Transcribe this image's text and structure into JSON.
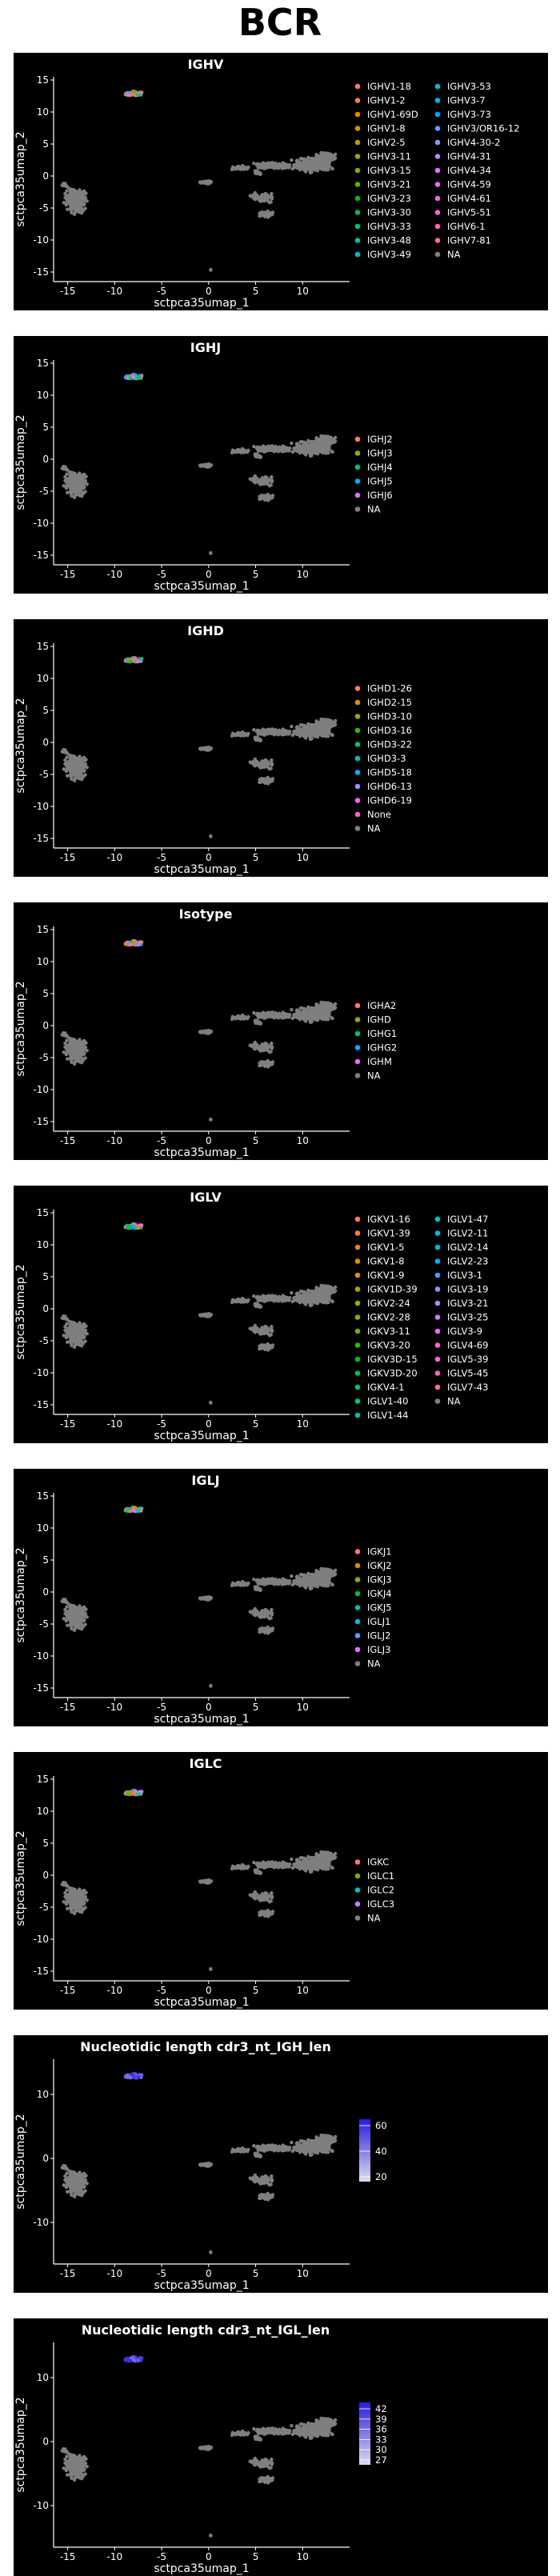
{
  "page": {
    "title": "BCR"
  },
  "chart_data": [
    {
      "type": "scatter",
      "title": "IGHV",
      "xlabel": "sctpca35umap_1",
      "ylabel": "sctpca35umap_2",
      "xlim": [
        -16.5,
        15
      ],
      "ylim": [
        -16.5,
        15.5
      ],
      "xticks": [
        -15,
        -10,
        -5,
        0,
        5,
        10
      ],
      "yticks": [
        15,
        10,
        5,
        0,
        -5,
        -10,
        -15
      ],
      "legend": {
        "position": "right",
        "columns": 2,
        "entries": [
          {
            "label": "IGHV1-18",
            "color": "#F8766D"
          },
          {
            "label": "IGHV1-2",
            "color": "#F17D51"
          },
          {
            "label": "IGHV1-69D",
            "color": "#E58700"
          },
          {
            "label": "IGHV1-8",
            "color": "#D29200"
          },
          {
            "label": "IGHV2-5",
            "color": "#BE9C00"
          },
          {
            "label": "IGHV3-11",
            "color": "#A3A500"
          },
          {
            "label": "IGHV3-15",
            "color": "#7CAE00"
          },
          {
            "label": "IGHV3-21",
            "color": "#5BB300"
          },
          {
            "label": "IGHV3-23",
            "color": "#00B81F"
          },
          {
            "label": "IGHV3-30",
            "color": "#00BC59"
          },
          {
            "label": "IGHV3-33",
            "color": "#00BF7D"
          },
          {
            "label": "IGHV3-48",
            "color": "#00C19F"
          },
          {
            "label": "IGHV3-49",
            "color": "#00BFC4"
          },
          {
            "label": "IGHV3-53",
            "color": "#00BBDA"
          },
          {
            "label": "IGHV3-7",
            "color": "#00B4EF"
          },
          {
            "label": "IGHV3-73",
            "color": "#00A5FF"
          },
          {
            "label": "IGHV3/OR16-12",
            "color": "#619CFF"
          },
          {
            "label": "IGHV4-30-2",
            "color": "#9590FF"
          },
          {
            "label": "IGHV4-31",
            "color": "#B983FF"
          },
          {
            "label": "IGHV4-34",
            "color": "#D575FE"
          },
          {
            "label": "IGHV4-59",
            "color": "#E76BF3"
          },
          {
            "label": "IGHV4-61",
            "color": "#F564E3"
          },
          {
            "label": "IGHV5-51",
            "color": "#FD61D1"
          },
          {
            "label": "IGHV6-1",
            "color": "#FF62BC"
          },
          {
            "label": "IGHV7-81",
            "color": "#FF67A4"
          },
          {
            "label": "NA",
            "color": "#7F7F7F"
          }
        ]
      }
    },
    {
      "type": "scatter",
      "title": "IGHJ",
      "xlabel": "sctpca35umap_1",
      "ylabel": "sctpca35umap_2",
      "xlim": [
        -16.5,
        15
      ],
      "ylim": [
        -16.5,
        15.5
      ],
      "xticks": [
        -15,
        -10,
        -5,
        0,
        5,
        10
      ],
      "yticks": [
        15,
        10,
        5,
        0,
        -5,
        -10,
        -15
      ],
      "legend": {
        "position": "right",
        "columns": 1,
        "entries": [
          {
            "label": "IGHJ2",
            "color": "#F8766D"
          },
          {
            "label": "IGHJ3",
            "color": "#A3A500"
          },
          {
            "label": "IGHJ4",
            "color": "#00BF7D"
          },
          {
            "label": "IGHJ5",
            "color": "#00B0F6"
          },
          {
            "label": "IGHJ6",
            "color": "#E76BF3"
          },
          {
            "label": "NA",
            "color": "#7F7F7F"
          }
        ]
      }
    },
    {
      "type": "scatter",
      "title": "IGHD",
      "xlabel": "sctpca35umap_1",
      "ylabel": "sctpca35umap_2",
      "xlim": [
        -16.5,
        15
      ],
      "ylim": [
        -16.5,
        15.5
      ],
      "xticks": [
        -15,
        -10,
        -5,
        0,
        5,
        10
      ],
      "yticks": [
        15,
        10,
        5,
        0,
        -5,
        -10,
        -15
      ],
      "legend": {
        "position": "right",
        "columns": 1,
        "entries": [
          {
            "label": "IGHD1-26",
            "color": "#F8766D"
          },
          {
            "label": "IGHD2-15",
            "color": "#D89000"
          },
          {
            "label": "IGHD3-10",
            "color": "#A3A500"
          },
          {
            "label": "IGHD3-16",
            "color": "#39B600"
          },
          {
            "label": "IGHD3-22",
            "color": "#00BF7D"
          },
          {
            "label": "IGHD3-3",
            "color": "#00BFC4"
          },
          {
            "label": "IGHD5-18",
            "color": "#00B0F6"
          },
          {
            "label": "IGHD6-13",
            "color": "#9590FF"
          },
          {
            "label": "IGHD6-19",
            "color": "#E76BF3"
          },
          {
            "label": "None",
            "color": "#FF62BC"
          },
          {
            "label": "NA",
            "color": "#7F7F7F"
          }
        ]
      }
    },
    {
      "type": "scatter",
      "title": "Isotype",
      "xlabel": "sctpca35umap_1",
      "ylabel": "sctpca35umap_2",
      "xlim": [
        -16.5,
        15
      ],
      "ylim": [
        -16.5,
        15.5
      ],
      "xticks": [
        -15,
        -10,
        -5,
        0,
        5,
        10
      ],
      "yticks": [
        15,
        10,
        5,
        0,
        -5,
        -10,
        -15
      ],
      "legend": {
        "position": "right",
        "columns": 1,
        "entries": [
          {
            "label": "IGHA2",
            "color": "#F8766D"
          },
          {
            "label": "IGHD",
            "color": "#A3A500"
          },
          {
            "label": "IGHG1",
            "color": "#00BF7D"
          },
          {
            "label": "IGHG2",
            "color": "#00B0F6"
          },
          {
            "label": "IGHM",
            "color": "#E76BF3"
          },
          {
            "label": "NA",
            "color": "#7F7F7F"
          }
        ]
      }
    },
    {
      "type": "scatter",
      "title": "IGLV",
      "xlabel": "sctpca35umap_1",
      "ylabel": "sctpca35umap_2",
      "xlim": [
        -16.5,
        15
      ],
      "ylim": [
        -16.5,
        15.5
      ],
      "xticks": [
        -15,
        -10,
        -5,
        0,
        5,
        10
      ],
      "yticks": [
        15,
        10,
        5,
        0,
        -5,
        -10,
        -15
      ],
      "legend": {
        "position": "right",
        "columns": 2,
        "entries": [
          {
            "label": "IGKV1-16",
            "color": "#F8766D"
          },
          {
            "label": "IGKV1-39",
            "color": "#F27D52"
          },
          {
            "label": "IGKV1-5",
            "color": "#E7861B"
          },
          {
            "label": "IGKV1-8",
            "color": "#DB8E00"
          },
          {
            "label": "IGKV1-9",
            "color": "#CA9700"
          },
          {
            "label": "IGKV1D-39",
            "color": "#B79F00"
          },
          {
            "label": "IGKV2-24",
            "color": "#A3A500"
          },
          {
            "label": "IGKV2-28",
            "color": "#8BAB00"
          },
          {
            "label": "IGKV3-11",
            "color": "#6BB100"
          },
          {
            "label": "IGKV3-20",
            "color": "#39B600"
          },
          {
            "label": "IGKV3D-15",
            "color": "#00BA38"
          },
          {
            "label": "IGKV3D-20",
            "color": "#00BD5F"
          },
          {
            "label": "IGKV4-1",
            "color": "#00BF7D"
          },
          {
            "label": "IGLV1-40",
            "color": "#00C097"
          },
          {
            "label": "IGLV1-44",
            "color": "#00C0AF"
          },
          {
            "label": "IGLV1-47",
            "color": "#00BFC4"
          },
          {
            "label": "IGLV2-11",
            "color": "#00BBD7"
          },
          {
            "label": "IGLV2-14",
            "color": "#00B6E8"
          },
          {
            "label": "IGLV2-23",
            "color": "#00ADF6"
          },
          {
            "label": "IGLV3-1",
            "color": "#3DA0FF"
          },
          {
            "label": "IGLV3-19",
            "color": "#8F91FF"
          },
          {
            "label": "IGLV3-21",
            "color": "#B385FF"
          },
          {
            "label": "IGLV3-25",
            "color": "#D17AFF"
          },
          {
            "label": "IGLV3-9",
            "color": "#E76BF3"
          },
          {
            "label": "IGLV4-69",
            "color": "#F563E3"
          },
          {
            "label": "IGLV5-39",
            "color": "#FD61D1"
          },
          {
            "label": "IGLV5-45",
            "color": "#FF62BC"
          },
          {
            "label": "IGLV7-43",
            "color": "#FF6AA0"
          },
          {
            "label": "NA",
            "color": "#7F7F7F"
          }
        ]
      }
    },
    {
      "type": "scatter",
      "title": "IGLJ",
      "xlabel": "sctpca35umap_1",
      "ylabel": "sctpca35umap_2",
      "xlim": [
        -16.5,
        15
      ],
      "ylim": [
        -16.5,
        15.5
      ],
      "xticks": [
        -15,
        -10,
        -5,
        0,
        5,
        10
      ],
      "yticks": [
        15,
        10,
        5,
        0,
        -5,
        -10,
        -15
      ],
      "legend": {
        "position": "right",
        "columns": 1,
        "entries": [
          {
            "label": "IGKJ1",
            "color": "#F8766D"
          },
          {
            "label": "IGKJ2",
            "color": "#D39200"
          },
          {
            "label": "IGKJ3",
            "color": "#93AA00"
          },
          {
            "label": "IGKJ4",
            "color": "#00BA38"
          },
          {
            "label": "IGKJ5",
            "color": "#00C19F"
          },
          {
            "label": "IGLJ1",
            "color": "#00B9E3"
          },
          {
            "label": "IGLJ2",
            "color": "#619CFF"
          },
          {
            "label": "IGLJ3",
            "color": "#DB72FB"
          },
          {
            "label": "NA",
            "color": "#7F7F7F"
          }
        ]
      }
    },
    {
      "type": "scatter",
      "title": "IGLC",
      "xlabel": "sctpca35umap_1",
      "ylabel": "sctpca35umap_2",
      "xlim": [
        -16.5,
        15
      ],
      "ylim": [
        -16.5,
        15.5
      ],
      "xticks": [
        -15,
        -10,
        -5,
        0,
        5,
        10
      ],
      "yticks": [
        15,
        10,
        5,
        0,
        -5,
        -10,
        -15
      ],
      "legend": {
        "position": "right",
        "columns": 1,
        "entries": [
          {
            "label": "IGKC",
            "color": "#F8766D"
          },
          {
            "label": "IGLC1",
            "color": "#7CAE00"
          },
          {
            "label": "IGLC2",
            "color": "#00BFC4"
          },
          {
            "label": "IGLC3",
            "color": "#C77CFF"
          },
          {
            "label": "NA",
            "color": "#7F7F7F"
          }
        ]
      }
    },
    {
      "type": "scatter",
      "title": "Nucleotidic length cdr3_nt_IGH_len",
      "xlabel": "sctpca35umap_1",
      "ylabel": "sctpca35umap_2",
      "xlim": [
        -16.5,
        15
      ],
      "ylim": [
        -16.5,
        15.5
      ],
      "xticks": [
        -15,
        -10,
        -5,
        0,
        5,
        10
      ],
      "yticks": [
        10,
        0,
        -10
      ],
      "colorbar": {
        "labels": [
          "60",
          "40",
          "20"
        ],
        "low": "#DDDDEE",
        "high": "#2A1BDB"
      }
    },
    {
      "type": "scatter",
      "title": "Nucleotidic length cdr3_nt_IGL_len",
      "xlabel": "sctpca35umap_1",
      "ylabel": "sctpca35umap_2",
      "xlim": [
        -16.5,
        15
      ],
      "ylim": [
        -16.5,
        15.5
      ],
      "xticks": [
        -15,
        -10,
        -5,
        0,
        5,
        10
      ],
      "yticks": [
        10,
        0,
        -10
      ],
      "colorbar": {
        "labels": [
          "42",
          "39",
          "36",
          "33",
          "30",
          "27"
        ],
        "low": "#DDDDEE",
        "high": "#2A1BDB"
      }
    }
  ]
}
